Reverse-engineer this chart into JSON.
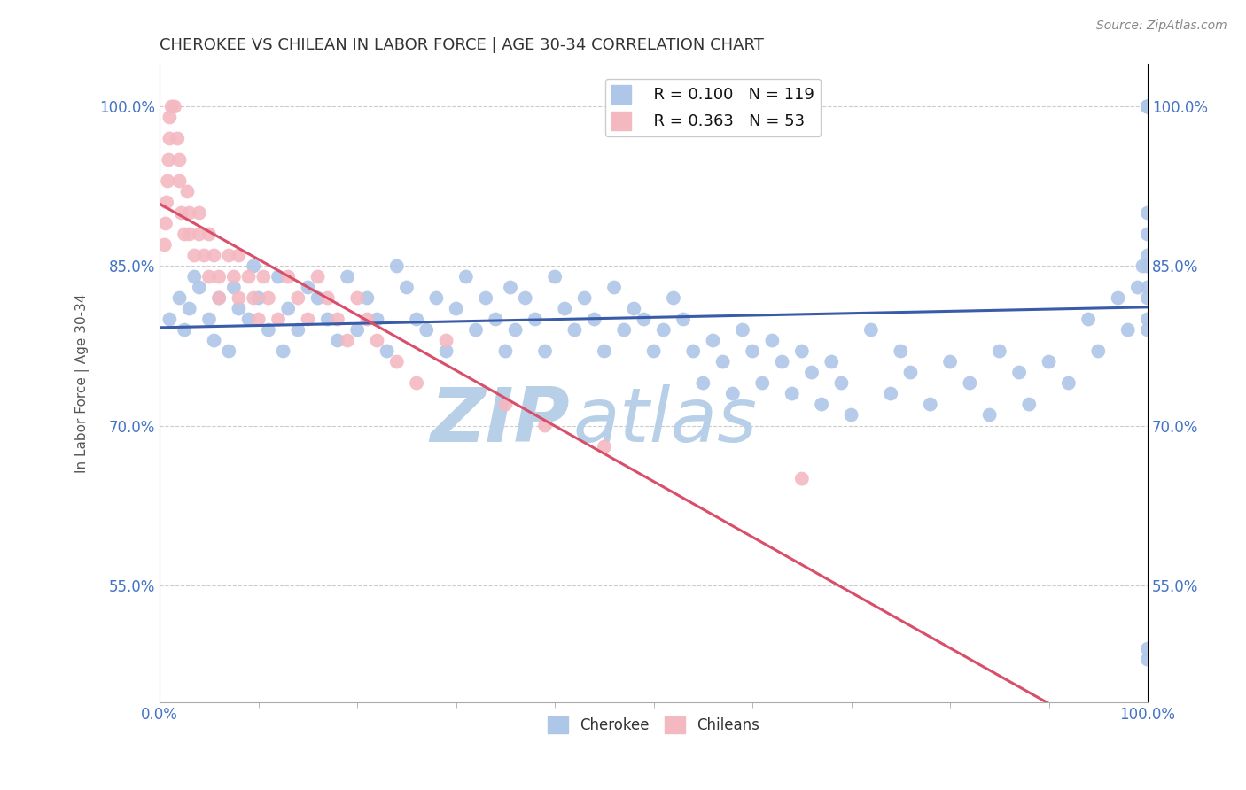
{
  "title": "CHEROKEE VS CHILEAN IN LABOR FORCE | AGE 30-34 CORRELATION CHART",
  "source_text": "Source: ZipAtlas.com",
  "ylabel": "In Labor Force | Age 30-34",
  "ytick_labels": [
    "55.0%",
    "70.0%",
    "85.0%",
    "100.0%"
  ],
  "ytick_values": [
    55.0,
    70.0,
    85.0,
    100.0
  ],
  "xlim": [
    0.0,
    100.0
  ],
  "ylim": [
    44.0,
    104.0
  ],
  "watermark_top": "ZIP",
  "watermark_bot": "atlas",
  "watermark_color_top": "#c5d8ee",
  "watermark_color_bot": "#c5d8ee",
  "cherokee_color": "#aec6e8",
  "chilean_color": "#f4b8c1",
  "cherokee_line_color": "#3a5ca8",
  "chilean_line_color": "#d94f6a",
  "title_color": "#333333",
  "title_fontsize": 13,
  "axis_label_color": "#4472c4",
  "background_color": "#ffffff",
  "grid_color": "#cccccc",
  "cherokee_x": [
    1.0,
    2.0,
    2.5,
    3.0,
    3.5,
    4.0,
    5.0,
    5.5,
    6.0,
    7.0,
    7.5,
    8.0,
    9.0,
    9.5,
    10.0,
    11.0,
    12.0,
    12.5,
    13.0,
    14.0,
    15.0,
    16.0,
    17.0,
    18.0,
    19.0,
    20.0,
    21.0,
    22.0,
    23.0,
    24.0,
    25.0,
    26.0,
    27.0,
    28.0,
    29.0,
    30.0,
    31.0,
    32.0,
    33.0,
    34.0,
    35.0,
    35.5,
    36.0,
    37.0,
    38.0,
    39.0,
    40.0,
    41.0,
    42.0,
    43.0,
    44.0,
    45.0,
    46.0,
    47.0,
    48.0,
    49.0,
    50.0,
    51.0,
    52.0,
    53.0,
    54.0,
    55.0,
    56.0,
    57.0,
    58.0,
    59.0,
    60.0,
    61.0,
    62.0,
    63.0,
    64.0,
    65.0,
    66.0,
    67.0,
    68.0,
    69.0,
    70.0,
    72.0,
    74.0,
    75.0,
    76.0,
    78.0,
    80.0,
    82.0,
    84.0,
    85.0,
    87.0,
    88.0,
    90.0,
    92.0,
    94.0,
    95.0,
    97.0,
    98.0,
    99.0,
    99.5,
    100.0,
    100.0,
    100.0,
    100.0,
    100.0,
    100.0,
    100.0,
    100.0,
    100.0,
    100.0,
    100.0,
    100.0,
    100.0,
    100.0,
    100.0,
    100.0,
    100.0,
    100.0,
    100.0
  ],
  "cherokee_y": [
    80.0,
    82.0,
    79.0,
    81.0,
    84.0,
    83.0,
    80.0,
    78.0,
    82.0,
    77.0,
    83.0,
    81.0,
    80.0,
    85.0,
    82.0,
    79.0,
    84.0,
    77.0,
    81.0,
    79.0,
    83.0,
    82.0,
    80.0,
    78.0,
    84.0,
    79.0,
    82.0,
    80.0,
    77.0,
    85.0,
    83.0,
    80.0,
    79.0,
    82.0,
    77.0,
    81.0,
    84.0,
    79.0,
    82.0,
    80.0,
    77.0,
    83.0,
    79.0,
    82.0,
    80.0,
    77.0,
    84.0,
    81.0,
    79.0,
    82.0,
    80.0,
    77.0,
    83.0,
    79.0,
    81.0,
    80.0,
    77.0,
    79.0,
    82.0,
    80.0,
    77.0,
    74.0,
    78.0,
    76.0,
    73.0,
    79.0,
    77.0,
    74.0,
    78.0,
    76.0,
    73.0,
    77.0,
    75.0,
    72.0,
    76.0,
    74.0,
    71.0,
    79.0,
    73.0,
    77.0,
    75.0,
    72.0,
    76.0,
    74.0,
    71.0,
    77.0,
    75.0,
    72.0,
    76.0,
    74.0,
    80.0,
    77.0,
    82.0,
    79.0,
    83.0,
    85.0,
    100.0,
    100.0,
    100.0,
    100.0,
    100.0,
    100.0,
    100.0,
    100.0,
    85.0,
    83.0,
    80.0,
    85.0,
    90.0,
    88.0,
    86.0,
    82.0,
    79.0,
    49.0,
    48.0
  ],
  "chilean_x": [
    0.5,
    0.6,
    0.7,
    0.8,
    0.9,
    1.0,
    1.0,
    1.2,
    1.5,
    1.8,
    2.0,
    2.0,
    2.2,
    2.5,
    2.8,
    3.0,
    3.0,
    3.5,
    4.0,
    4.0,
    4.5,
    5.0,
    5.0,
    5.5,
    6.0,
    6.0,
    7.0,
    7.5,
    8.0,
    8.0,
    9.0,
    9.5,
    10.0,
    10.5,
    11.0,
    12.0,
    13.0,
    14.0,
    15.0,
    16.0,
    17.0,
    18.0,
    19.0,
    20.0,
    21.0,
    22.0,
    24.0,
    26.0,
    29.0,
    35.0,
    39.0,
    45.0,
    65.0
  ],
  "chilean_y": [
    87.0,
    89.0,
    91.0,
    93.0,
    95.0,
    97.0,
    99.0,
    100.0,
    100.0,
    97.0,
    95.0,
    93.0,
    90.0,
    88.0,
    92.0,
    90.0,
    88.0,
    86.0,
    90.0,
    88.0,
    86.0,
    84.0,
    88.0,
    86.0,
    84.0,
    82.0,
    86.0,
    84.0,
    82.0,
    86.0,
    84.0,
    82.0,
    80.0,
    84.0,
    82.0,
    80.0,
    84.0,
    82.0,
    80.0,
    84.0,
    82.0,
    80.0,
    78.0,
    82.0,
    80.0,
    78.0,
    76.0,
    74.0,
    78.0,
    72.0,
    70.0,
    68.0,
    65.0
  ]
}
